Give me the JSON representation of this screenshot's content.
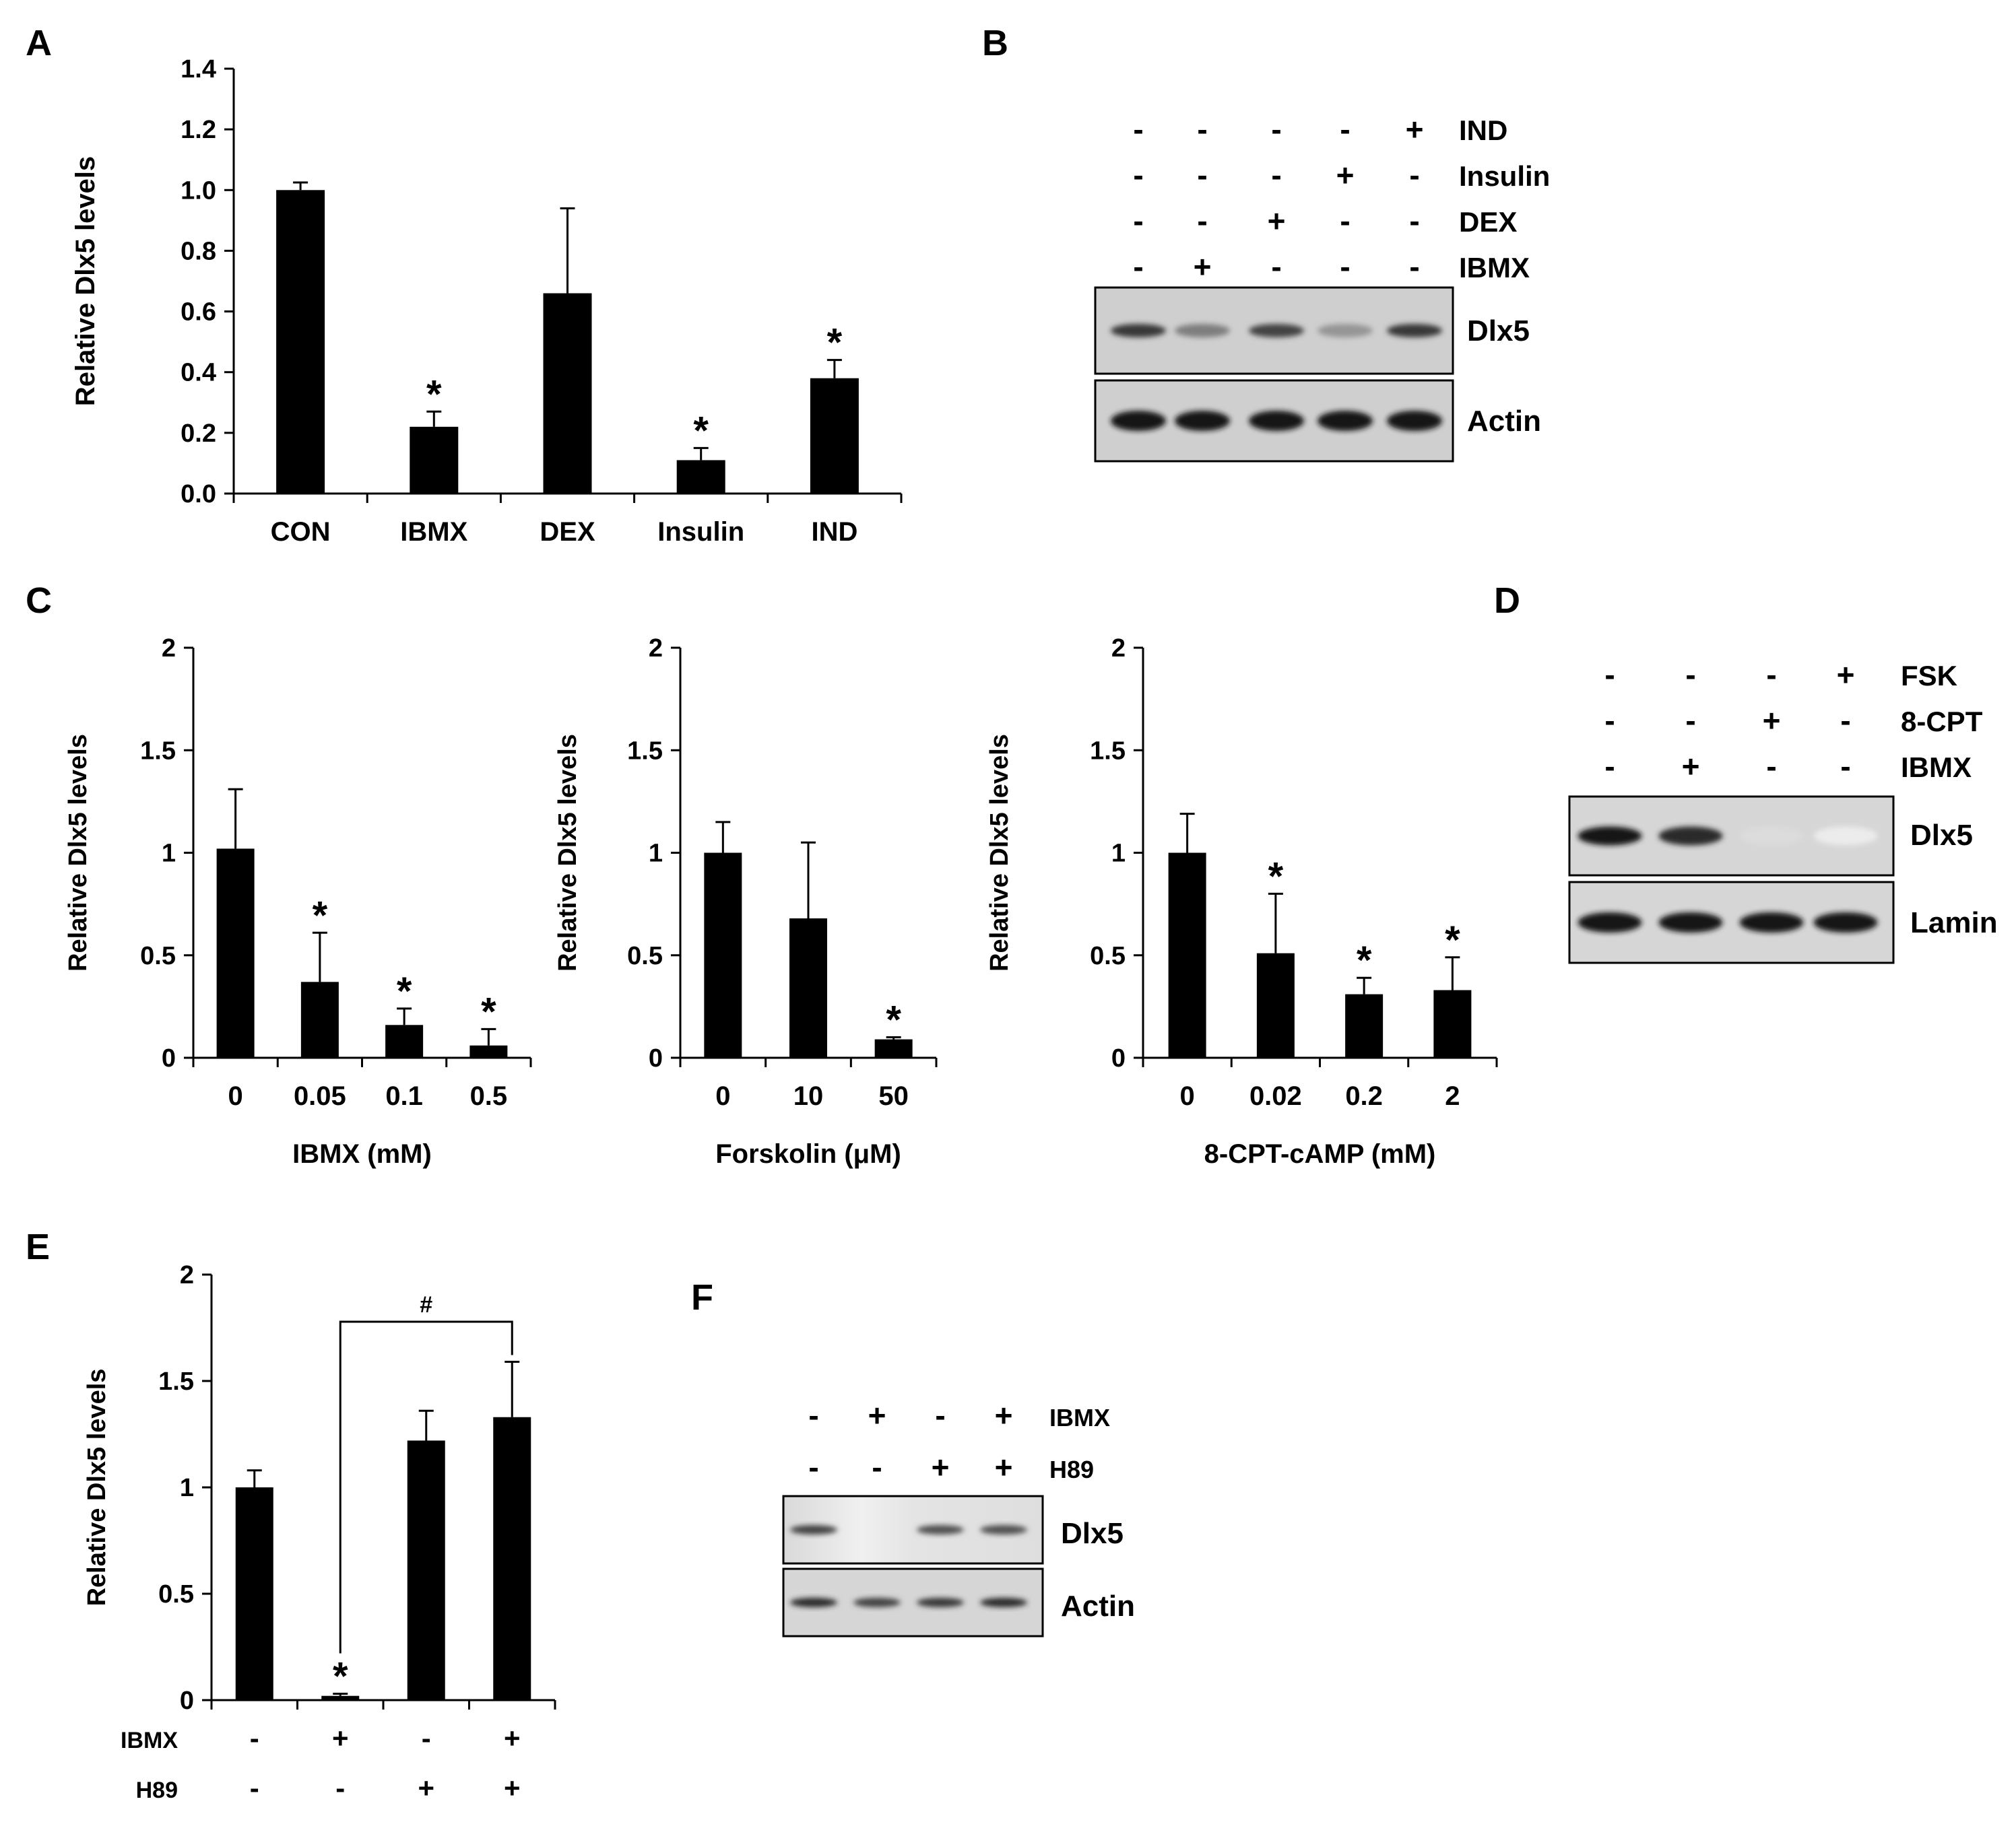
{
  "panel_letters": [
    "A",
    "B",
    "C",
    "D",
    "E",
    "F"
  ],
  "chart_data": [
    {
      "panel": "A",
      "type": "bar",
      "categories": [
        "CON",
        "IBMX",
        "DEX",
        "Insulin",
        "IND"
      ],
      "values": [
        1.0,
        0.22,
        0.66,
        0.11,
        0.38
      ],
      "errors": [
        0.025,
        0.05,
        0.28,
        0.04,
        0.06
      ],
      "significance": [
        "",
        "*",
        "",
        "*",
        "*"
      ],
      "ylabel": "Relative Dlx5 levels",
      "xlabel": "",
      "ylim": [
        0,
        1.4
      ],
      "yticks": [
        0.0,
        0.2,
        0.4,
        0.6,
        0.8,
        1.0,
        1.2,
        1.4
      ],
      "ytick_labels": [
        "0.0",
        "0.2",
        "0.4",
        "0.6",
        "0.8",
        "1.0",
        "1.2",
        "1.4"
      ]
    },
    {
      "panel": "C1",
      "type": "bar",
      "categories": [
        "0",
        "0.05",
        "0.1",
        "0.5"
      ],
      "values": [
        1.02,
        0.37,
        0.16,
        0.06
      ],
      "errors": [
        0.29,
        0.24,
        0.08,
        0.08
      ],
      "significance": [
        "",
        "*",
        "*",
        "*"
      ],
      "ylabel": "Relative Dlx5  levels",
      "xlabel": "IBMX (mM)",
      "ylim": [
        0,
        2
      ],
      "yticks": [
        0,
        0.5,
        1,
        1.5,
        2
      ],
      "ytick_labels": [
        "0",
        "0.5",
        "1",
        "1.5",
        "2"
      ]
    },
    {
      "panel": "C2",
      "type": "bar",
      "categories": [
        "0",
        "10",
        "50"
      ],
      "values": [
        1.0,
        0.68,
        0.09
      ],
      "errors": [
        0.15,
        0.37,
        0.01
      ],
      "significance": [
        "",
        "",
        "*"
      ],
      "ylabel": "Relative Dlx5 levels",
      "xlabel": "Forskolin (μM)",
      "ylim": [
        0,
        2
      ],
      "yticks": [
        0,
        0.5,
        1,
        1.5,
        2
      ],
      "ytick_labels": [
        "0",
        "0.5",
        "1",
        "1.5",
        "2"
      ]
    },
    {
      "panel": "C3",
      "type": "bar",
      "categories": [
        "0",
        "0.02",
        "0.2",
        "2"
      ],
      "values": [
        1.0,
        0.51,
        0.31,
        0.33
      ],
      "errors": [
        0.19,
        0.29,
        0.08,
        0.16
      ],
      "significance": [
        "",
        "*",
        "*",
        "*"
      ],
      "ylabel": "Relative Dlx5 levels",
      "xlabel": "8-CPT-cAMP (mM)",
      "ylim": [
        0,
        2
      ],
      "yticks": [
        0,
        0.5,
        1,
        1.5,
        2
      ],
      "ytick_labels": [
        "0",
        "0.5",
        "1",
        "1.5",
        "2"
      ]
    },
    {
      "panel": "E",
      "type": "bar",
      "categories": [
        "",
        "",
        "",
        ""
      ],
      "values": [
        1.0,
        0.02,
        1.22,
        1.33
      ],
      "errors": [
        0.08,
        0.01,
        0.14,
        0.26
      ],
      "significance": [
        "",
        "*",
        "",
        ""
      ],
      "bracket": {
        "from": 1,
        "to": 3,
        "label": "#"
      },
      "row_labels": [
        "IBMX",
        "H89"
      ],
      "rows": [
        [
          "-",
          "+",
          "-",
          "+"
        ],
        [
          "-",
          "-",
          "+",
          "+"
        ]
      ],
      "ylabel": "Relative Dlx5 levels",
      "xlabel": "",
      "ylim": [
        0,
        2
      ],
      "yticks": [
        0,
        0.5,
        1,
        1.5,
        2
      ],
      "ytick_labels": [
        "0",
        "0.5",
        "1",
        "1.5",
        "2"
      ]
    }
  ],
  "blots": [
    {
      "panel": "B",
      "treatment_rows": [
        {
          "label": "IND",
          "signs": [
            "-",
            "-",
            "-",
            "-",
            "+"
          ]
        },
        {
          "label": "Insulin",
          "signs": [
            "-",
            "-",
            "-",
            "+",
            "-"
          ]
        },
        {
          "label": "DEX",
          "signs": [
            "-",
            "-",
            "+",
            "-",
            "-"
          ]
        },
        {
          "label": "IBMX",
          "signs": [
            "-",
            "+",
            "-",
            "-",
            "-"
          ]
        }
      ],
      "band_rows": [
        {
          "label": "Dlx5",
          "intensity": [
            0.85,
            0.55,
            0.8,
            0.45,
            0.85
          ]
        },
        {
          "label": "Actin",
          "intensity": [
            1.0,
            1.0,
            1.0,
            1.0,
            1.0
          ]
        }
      ]
    },
    {
      "panel": "D",
      "treatment_rows": [
        {
          "label": "FSK",
          "signs": [
            "-",
            "-",
            "-",
            "+"
          ]
        },
        {
          "label": "8-CPT",
          "signs": [
            "-",
            "-",
            "+",
            "-"
          ]
        },
        {
          "label": "IBMX",
          "signs": [
            "-",
            "+",
            "-",
            "-"
          ]
        }
      ],
      "band_rows": [
        {
          "label": "Dlx5",
          "intensity": [
            1.0,
            0.9,
            0.15,
            0.08
          ]
        },
        {
          "label": "Lamin",
          "intensity": [
            1.0,
            1.0,
            1.0,
            1.0
          ]
        }
      ]
    },
    {
      "panel": "F",
      "treatment_rows": [
        {
          "label": "IBMX",
          "signs": [
            "-",
            "+",
            "-",
            "+"
          ]
        },
        {
          "label": "H89",
          "signs": [
            "-",
            "-",
            "+",
            "+"
          ]
        }
      ],
      "band_rows": [
        {
          "label": "Dlx5",
          "intensity": [
            0.8,
            0.0,
            0.75,
            0.75
          ]
        },
        {
          "label": "Actin",
          "intensity": [
            0.9,
            0.8,
            0.85,
            0.9
          ]
        }
      ]
    }
  ]
}
